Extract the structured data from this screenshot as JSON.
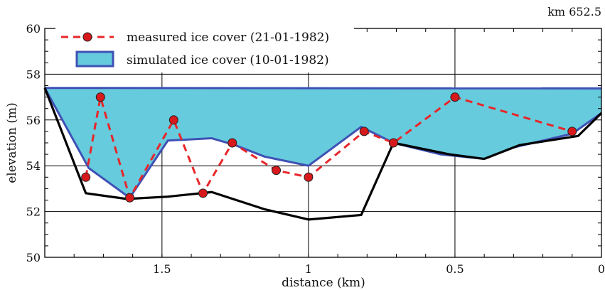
{
  "corner_label": "km 652.5",
  "chart_data": {
    "type": "line",
    "title": "",
    "xlabel": "distance (km)",
    "ylabel": "elevation (m)",
    "x_reversed": true,
    "xlim": [
      1.9,
      0
    ],
    "ylim": [
      50,
      60
    ],
    "x_major_ticks": [
      1.5,
      1,
      0.5,
      0
    ],
    "x_tick_labels": [
      "1.5",
      "1",
      "0.5",
      "0"
    ],
    "y_major_ticks": [
      50,
      52,
      54,
      56,
      58,
      60
    ],
    "y_tick_labels": [
      "50",
      "52",
      "54",
      "56",
      "58",
      "60"
    ],
    "grid": true,
    "legend_position": "top-left",
    "colors": {
      "bed": "#000000",
      "measured": "#e8262a",
      "measured_marker": "#d7191c",
      "simulated_fill": "#66cbdc",
      "simulated_edge": "#3f51b5"
    },
    "series": [
      {
        "name": "measured ice cover (21-01-1982)",
        "style": "dashed-with-markers",
        "x": [
          1.76,
          1.71,
          1.61,
          1.46,
          1.36,
          1.26,
          1.11,
          1.0,
          0.81,
          0.71,
          0.5,
          0.1
        ],
        "y": [
          53.5,
          57.0,
          52.6,
          56.0,
          52.8,
          55.0,
          53.8,
          53.5,
          55.5,
          55.0,
          57.0,
          55.5
        ]
      },
      {
        "name": "simulated ice cover (10-01-1982)",
        "style": "filled-area",
        "top_x": [
          1.9,
          0
        ],
        "top_y": [
          57.4,
          57.38
        ],
        "bottom_x": [
          1.9,
          1.75,
          1.61,
          1.48,
          1.33,
          1.25,
          1.15,
          1.0,
          0.82,
          0.71,
          0.55,
          0.4,
          0.3,
          0.1,
          0.0
        ],
        "bottom_y": [
          57.4,
          53.9,
          52.6,
          55.1,
          55.2,
          54.9,
          54.4,
          54.0,
          55.7,
          55.0,
          54.5,
          54.3,
          54.8,
          55.4,
          56.3
        ]
      },
      {
        "style": "solid",
        "x": [
          1.9,
          1.76,
          1.62,
          1.48,
          1.33,
          1.15,
          1.0,
          0.82,
          0.71,
          0.52,
          0.4,
          0.28,
          0.08,
          0.0
        ],
        "y": [
          57.4,
          52.8,
          52.55,
          52.65,
          52.85,
          52.1,
          51.65,
          51.85,
          55.0,
          54.5,
          54.3,
          54.9,
          55.3,
          56.3
        ]
      }
    ]
  }
}
